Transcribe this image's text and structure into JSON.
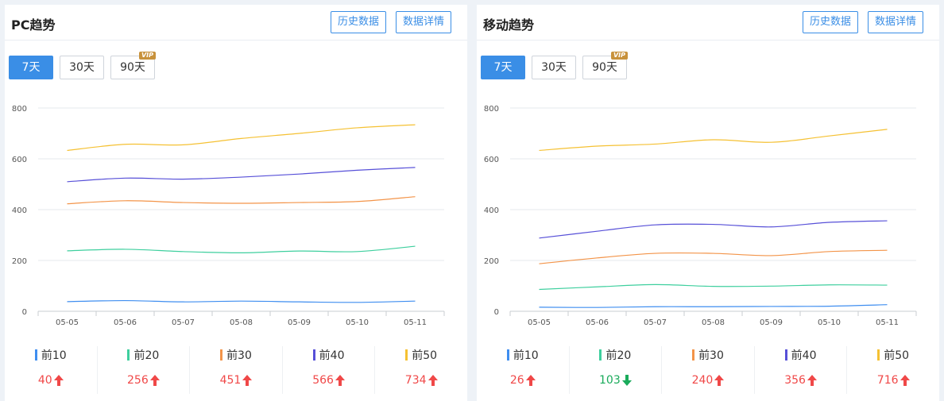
{
  "colors": {
    "accent": "#3a8ee6",
    "up": "#f04848",
    "down": "#1aab5b",
    "series": [
      "#3f8ef0",
      "#3ecf9e",
      "#f39449",
      "#5750d8",
      "#f5c133"
    ]
  },
  "panels": [
    {
      "id": "pc",
      "title": "PC趋势",
      "history_label": "历史数据",
      "detail_label": "数据详情",
      "ranges": [
        "7天",
        "30天",
        "90天"
      ],
      "vip_badge": "VIP",
      "stats": [
        {
          "label": "前10",
          "value": "40",
          "trend": "up"
        },
        {
          "label": "前20",
          "value": "256",
          "trend": "up"
        },
        {
          "label": "前30",
          "value": "451",
          "trend": "up"
        },
        {
          "label": "前40",
          "value": "566",
          "trend": "up"
        },
        {
          "label": "前50",
          "value": "734",
          "trend": "up"
        }
      ]
    },
    {
      "id": "mobile",
      "title": "移动趋势",
      "history_label": "历史数据",
      "detail_label": "数据详情",
      "ranges": [
        "7天",
        "30天",
        "90天"
      ],
      "vip_badge": "VIP",
      "stats": [
        {
          "label": "前10",
          "value": "26",
          "trend": "up"
        },
        {
          "label": "前20",
          "value": "103",
          "trend": "down"
        },
        {
          "label": "前30",
          "value": "240",
          "trend": "up"
        },
        {
          "label": "前40",
          "value": "356",
          "trend": "up"
        },
        {
          "label": "前50",
          "value": "716",
          "trend": "up"
        }
      ]
    }
  ],
  "chart_data": [
    {
      "type": "line",
      "x": [
        "05-05",
        "05-06",
        "05-07",
        "05-08",
        "05-09",
        "05-10",
        "05-11"
      ],
      "ylim": [
        0,
        800
      ],
      "yticks": [
        0,
        200,
        400,
        600,
        800
      ],
      "grid": true,
      "series": [
        {
          "name": "前10",
          "values": [
            38,
            42,
            37,
            40,
            37,
            35,
            40
          ]
        },
        {
          "name": "前20",
          "values": [
            238,
            244,
            235,
            230,
            237,
            235,
            256
          ]
        },
        {
          "name": "前30",
          "values": [
            423,
            435,
            428,
            425,
            428,
            432,
            451
          ]
        },
        {
          "name": "前40",
          "values": [
            510,
            524,
            520,
            528,
            540,
            555,
            566
          ]
        },
        {
          "name": "前50",
          "values": [
            633,
            657,
            655,
            680,
            700,
            722,
            734
          ]
        }
      ]
    },
    {
      "type": "line",
      "x": [
        "05-05",
        "05-06",
        "05-07",
        "05-08",
        "05-09",
        "05-10",
        "05-11"
      ],
      "ylim": [
        0,
        800
      ],
      "yticks": [
        0,
        200,
        400,
        600,
        800
      ],
      "grid": true,
      "series": [
        {
          "name": "前10",
          "values": [
            16,
            15,
            18,
            18,
            19,
            20,
            26
          ]
        },
        {
          "name": "前20",
          "values": [
            86,
            96,
            105,
            98,
            99,
            104,
            103
          ]
        },
        {
          "name": "前30",
          "values": [
            187,
            210,
            228,
            228,
            219,
            235,
            240
          ]
        },
        {
          "name": "前40",
          "values": [
            288,
            315,
            340,
            342,
            332,
            350,
            356
          ]
        },
        {
          "name": "前50",
          "values": [
            633,
            650,
            658,
            675,
            665,
            690,
            716
          ]
        }
      ]
    }
  ]
}
